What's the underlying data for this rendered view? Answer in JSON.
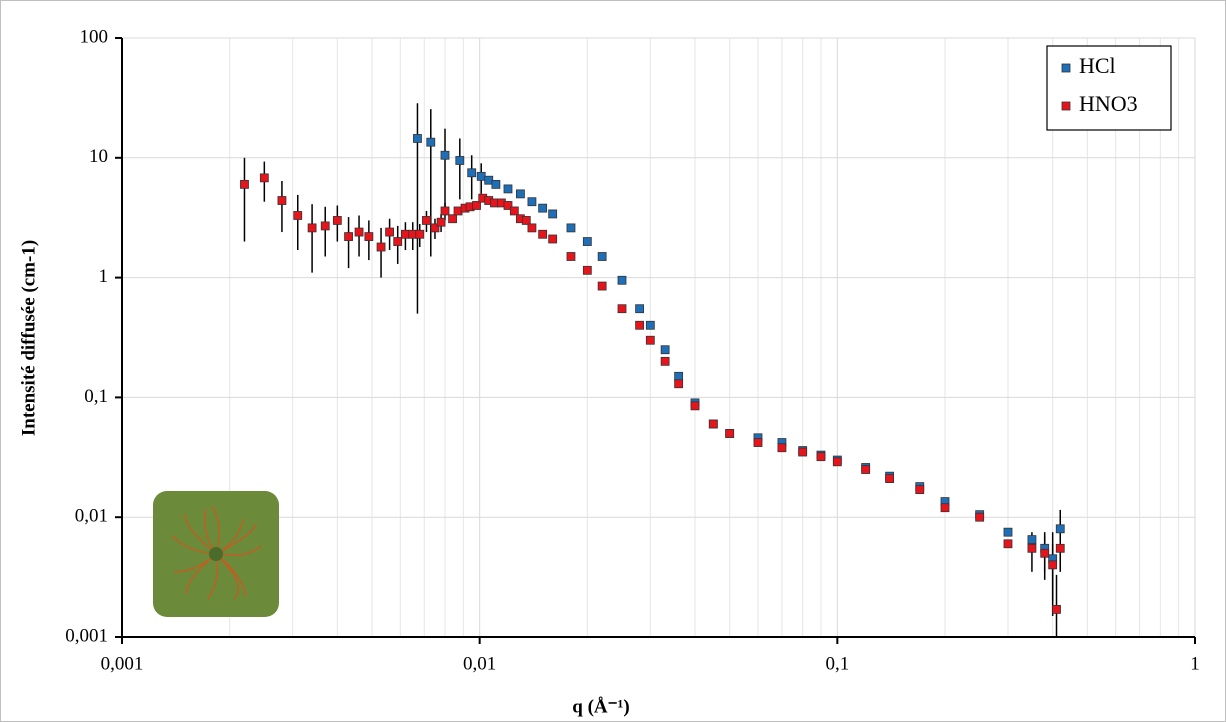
{
  "chart_data": {
    "type": "scatter",
    "x_label": "q (Å⁻¹)",
    "y_label": "Intensité diffusée (cm-1)",
    "log_x": true,
    "log_y": true,
    "grid": true,
    "minor_grid": true,
    "legend_position": "top-right",
    "xlim": [
      0.001,
      1
    ],
    "ylim": [
      0.001,
      100
    ],
    "xticks": [
      {
        "value": 0.001,
        "label": "0,001"
      },
      {
        "value": 0.01,
        "label": "0,01"
      },
      {
        "value": 0.1,
        "label": "0,1"
      },
      1
    ],
    "yticks": [
      {
        "value": 0.001,
        "label": "0,001"
      },
      {
        "value": 0.01,
        "label": "0,01"
      },
      {
        "value": 0.1,
        "label": "0,1"
      },
      1,
      10,
      100
    ],
    "series": [
      {
        "name": "HCl",
        "color": "#1f6fb8",
        "x": [
          0.0067,
          0.0073,
          0.008,
          0.0088,
          0.0095,
          0.0101,
          0.0106,
          0.0111,
          0.012,
          0.013,
          0.014,
          0.015,
          0.016,
          0.018,
          0.02,
          0.022,
          0.025,
          0.028,
          0.03,
          0.033,
          0.036,
          0.04,
          0.045,
          0.05,
          0.06,
          0.07,
          0.08,
          0.09,
          0.1,
          0.12,
          0.14,
          0.17,
          0.2,
          0.25,
          0.3,
          0.35,
          0.38,
          0.4,
          0.42
        ],
        "values": [
          14.5,
          13.5,
          10.5,
          9.5,
          7.5,
          7.0,
          6.5,
          6.0,
          5.5,
          5.0,
          4.3,
          3.8,
          3.4,
          2.6,
          2.0,
          1.5,
          0.95,
          0.55,
          0.4,
          0.25,
          0.15,
          0.09,
          0.06,
          0.05,
          0.046,
          0.042,
          0.036,
          0.033,
          0.03,
          0.026,
          0.022,
          0.018,
          0.0135,
          0.0105,
          0.0075,
          0.0065,
          0.0055,
          0.0045,
          0.008
        ],
        "errors": [
          14,
          12,
          7,
          5,
          3,
          2,
          null,
          null,
          null,
          null,
          null,
          null,
          null,
          null,
          null,
          null,
          null,
          null,
          null,
          null,
          null,
          null,
          null,
          null,
          null,
          null,
          null,
          null,
          null,
          null,
          null,
          null,
          null,
          null,
          null,
          null,
          0.002,
          0.003,
          0.0035
        ]
      },
      {
        "name": "HNO3",
        "color": "#e8141c",
        "x": [
          0.0022,
          0.0025,
          0.0028,
          0.0031,
          0.0034,
          0.0037,
          0.004,
          0.0043,
          0.0046,
          0.0049,
          0.0053,
          0.0056,
          0.0059,
          0.0062,
          0.0065,
          0.0068,
          0.0071,
          0.0075,
          0.0078,
          0.008,
          0.0084,
          0.0087,
          0.0091,
          0.0094,
          0.0098,
          0.0102,
          0.0106,
          0.011,
          0.0115,
          0.012,
          0.0125,
          0.013,
          0.0135,
          0.014,
          0.015,
          0.016,
          0.018,
          0.02,
          0.022,
          0.025,
          0.028,
          0.03,
          0.033,
          0.036,
          0.04,
          0.045,
          0.05,
          0.06,
          0.07,
          0.08,
          0.09,
          0.1,
          0.12,
          0.14,
          0.17,
          0.2,
          0.25,
          0.3,
          0.35,
          0.38,
          0.4,
          0.41,
          0.42
        ],
        "values": [
          6.0,
          6.8,
          4.4,
          3.3,
          2.6,
          2.7,
          3.0,
          2.2,
          2.4,
          2.2,
          1.8,
          2.4,
          2.0,
          2.3,
          2.3,
          2.3,
          3.0,
          2.6,
          2.9,
          3.6,
          3.1,
          3.6,
          3.8,
          3.9,
          4.0,
          4.6,
          4.4,
          4.2,
          4.2,
          4.0,
          3.6,
          3.1,
          3.0,
          2.6,
          2.3,
          2.1,
          1.5,
          1.15,
          0.85,
          0.55,
          0.4,
          0.3,
          0.2,
          0.13,
          0.085,
          0.06,
          0.05,
          0.042,
          0.038,
          0.035,
          0.032,
          0.029,
          0.025,
          0.021,
          0.017,
          0.012,
          0.01,
          0.006,
          0.0055,
          0.005,
          0.004,
          0.0017,
          0.0055
        ],
        "errors": [
          4,
          2.5,
          2,
          1.6,
          1.5,
          1.2,
          1.0,
          1.0,
          0.9,
          0.8,
          0.8,
          0.7,
          0.7,
          0.6,
          0.6,
          0.5,
          0.6,
          0.5,
          0.5,
          0.6,
          null,
          null,
          null,
          null,
          null,
          null,
          null,
          null,
          null,
          null,
          null,
          null,
          null,
          null,
          null,
          null,
          null,
          null,
          null,
          null,
          null,
          null,
          null,
          null,
          null,
          null,
          null,
          null,
          null,
          null,
          null,
          null,
          null,
          null,
          null,
          null,
          null,
          null,
          0.002,
          0.002,
          0.002,
          0.0016,
          0.002
        ]
      }
    ]
  }
}
